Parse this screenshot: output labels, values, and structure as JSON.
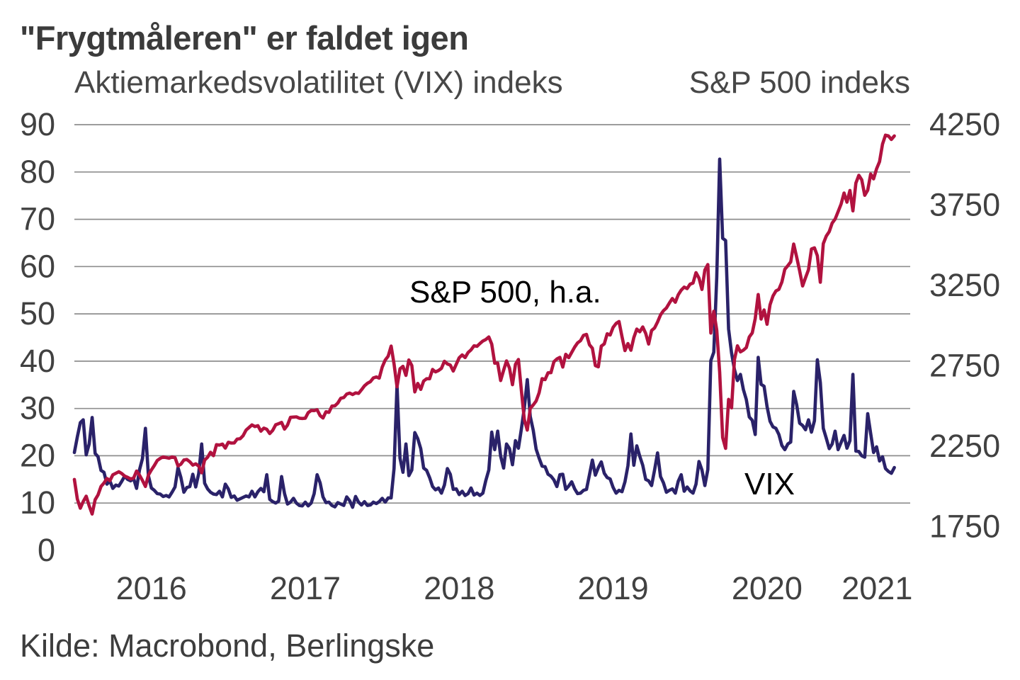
{
  "title": "\"Frygtmåleren\" er faldet igen",
  "subtitle_left": "Aktiemarkedsvolatilitet (VIX) indeks",
  "subtitle_right": "S&P 500 indeks",
  "source": "Kilde: Macrobond, Berlingske",
  "series_labels": {
    "sp500": "S&P 500, h.a.",
    "vix": "VIX"
  },
  "colors": {
    "vix": "#2a2269",
    "sp500": "#b1123f",
    "grid": "#8e8e8e",
    "tick_text": "#414141",
    "title_text": "#3b3b3b"
  },
  "chart_data": {
    "type": "line",
    "title": "\"Frygtmåleren\" er faldet igen",
    "grid": true,
    "legend": "inline-labels",
    "x_axis": {
      "unit": "year",
      "start": 2016.0,
      "step": 0.0192308,
      "range": [
        2016.0,
        2021.43
      ],
      "tick_positions": [
        2016.5,
        2017.5,
        2018.5,
        2019.5,
        2020.5,
        2021.215
      ],
      "tick_labels": [
        "2016",
        "2017",
        "2018",
        "2019",
        "2020",
        "2021"
      ]
    },
    "left_axis": {
      "title": "Aktiemarkedsvolatilitet (VIX) indeks",
      "range": [
        0,
        90
      ],
      "ticks": [
        0,
        10,
        20,
        30,
        40,
        50,
        60,
        70,
        80,
        90
      ],
      "gridlines": [
        10,
        20,
        30,
        40,
        50,
        60,
        70,
        80,
        90
      ]
    },
    "right_axis": {
      "title": "S&P 500 indeks",
      "ticks": [
        1750,
        2250,
        2750,
        3250,
        3750,
        4250
      ],
      "aligned": {
        "right_value": 4250,
        "left_value": 90,
        "right_units_per_left_unit": 29.412
      }
    },
    "series": [
      {
        "name": "VIX",
        "axis": "left",
        "color": "#2a2269",
        "values": [
          20.7,
          24.0,
          27.0,
          27.6,
          20.2,
          22.5,
          28.1,
          20.5,
          19.8,
          16.9,
          16.5,
          14.0,
          14.7,
          13.1,
          13.8,
          13.6,
          14.6,
          15.7,
          15.0,
          14.7,
          15.2,
          13.1,
          17.0,
          19.4,
          25.8,
          15.8,
          13.2,
          12.7,
          12.0,
          11.9,
          11.4,
          11.6,
          11.3,
          12.3,
          13.4,
          17.5,
          15.4,
          12.3,
          13.3,
          13.5,
          16.1,
          13.4,
          16.2,
          22.5,
          14.2,
          13.0,
          12.3,
          11.9,
          11.8,
          12.5,
          11.3,
          14.0,
          13.0,
          11.2,
          11.5,
          10.6,
          10.9,
          11.2,
          11.5,
          11.3,
          12.5,
          11.3,
          12.4,
          13.1,
          12.4,
          16.0,
          10.8,
          10.3,
          10.0,
          10.4,
          15.6,
          12.0,
          9.8,
          10.2,
          11.0,
          10.0,
          9.5,
          9.4,
          10.2,
          9.4,
          10.0,
          12.0,
          16.0,
          14.3,
          11.3,
          10.1,
          10.2,
          9.5,
          9.2,
          10.1,
          9.8,
          9.5,
          11.3,
          10.5,
          9.1,
          11.4,
          10.2,
          9.6,
          10.3,
          9.5,
          9.6,
          10.2,
          9.9,
          10.3,
          11.0,
          10.2,
          11.1,
          11.1,
          17.3,
          35.0,
          19.5,
          16.5,
          22.5,
          15.8,
          17.0,
          24.9,
          23.6,
          21.5,
          17.4,
          16.9,
          15.4,
          13.5,
          12.8,
          13.2,
          12.1,
          13.8,
          17.3,
          16.1,
          12.9,
          13.0,
          11.8,
          12.5,
          11.6,
          12.0,
          13.2,
          11.7,
          12.1,
          11.6,
          12.1,
          14.8,
          17.0,
          25.0,
          21.3,
          25.2,
          19.9,
          17.4,
          22.5,
          21.5,
          18.1,
          23.2,
          21.6,
          25.6,
          30.1,
          36.1,
          28.3,
          25.4,
          21.4,
          19.5,
          17.8,
          17.7,
          16.1,
          15.7,
          14.9,
          13.5,
          16.0,
          16.1,
          12.9,
          13.6,
          14.5,
          13.0,
          12.0,
          12.1,
          12.7,
          12.9,
          16.0,
          19.1,
          15.9,
          17.5,
          18.7,
          16.3,
          15.4,
          15.1,
          13.3,
          12.1,
          12.7,
          12.4,
          14.5,
          17.9,
          24.6,
          18.0,
          22.1,
          19.9,
          18.0,
          15.0,
          14.7,
          13.7,
          17.0,
          20.6,
          15.6,
          14.3,
          12.3,
          12.7,
          13.0,
          12.1,
          14.6,
          16.0,
          12.5,
          13.4,
          12.6,
          12.1,
          14.0,
          18.8,
          17.0,
          13.7,
          17.1,
          40.1,
          41.9,
          57.8,
          82.7,
          66.0,
          65.5,
          46.8,
          41.7,
          38.2,
          35.9,
          37.2,
          34.0,
          31.9,
          28.2,
          27.5,
          24.5,
          40.8,
          35.1,
          34.7,
          30.4,
          27.3,
          26.1,
          25.8,
          24.5,
          22.2,
          21.3,
          22.5,
          22.9,
          33.6,
          30.8,
          26.9,
          26.4,
          25.5,
          27.6,
          25.0,
          27.4,
          40.3,
          35.5,
          25.8,
          23.7,
          21.5,
          22.5,
          25.2,
          21.3,
          22.8,
          24.3,
          21.6,
          23.2,
          37.2,
          21.0,
          20.9,
          20.0,
          19.7,
          28.9,
          24.7,
          20.7,
          21.9,
          18.9,
          19.8,
          17.3,
          16.7,
          16.3,
          17.5
        ]
      },
      {
        "name": "S&P 500",
        "axis": "right",
        "color": "#b1123f",
        "values": [
          2044,
          1922,
          1865,
          1907,
          1940,
          1880,
          1829,
          1918,
          1948,
          2000,
          2022,
          2050,
          2036,
          2073,
          2082,
          2092,
          2081,
          2065,
          2057,
          2047,
          2052,
          2096,
          2071,
          2038,
          2000,
          2071,
          2103,
          2130,
          2162,
          2175,
          2184,
          2180,
          2176,
          2184,
          2180,
          2128,
          2139,
          2165,
          2168,
          2154,
          2133,
          2141,
          2127,
          2085,
          2164,
          2182,
          2213,
          2192,
          2260,
          2258,
          2264,
          2239,
          2275,
          2270,
          2271,
          2295,
          2297,
          2316,
          2351,
          2367,
          2383,
          2373,
          2378,
          2344,
          2363,
          2356,
          2329,
          2349,
          2384,
          2391,
          2399,
          2357,
          2382,
          2430,
          2432,
          2433,
          2425,
          2423,
          2425,
          2459,
          2473,
          2472,
          2477,
          2441,
          2426,
          2465,
          2461,
          2500,
          2502,
          2519,
          2549,
          2553,
          2575,
          2581,
          2572,
          2582,
          2579,
          2602,
          2626,
          2642,
          2652,
          2675,
          2681,
          2674,
          2743,
          2786,
          2810,
          2873,
          2762,
          2620,
          2732,
          2747,
          2691,
          2787,
          2752,
          2588,
          2641,
          2604,
          2656,
          2670,
          2670,
          2728,
          2713,
          2721,
          2735,
          2779,
          2762,
          2755,
          2718,
          2760,
          2801,
          2818,
          2802,
          2833,
          2850,
          2875,
          2872,
          2889,
          2905,
          2914,
          2930,
          2886,
          2767,
          2768,
          2659,
          2723,
          2781,
          2736,
          2633,
          2760,
          2790,
          2600,
          2417,
          2351,
          2486,
          2507,
          2532,
          2583,
          2671,
          2665,
          2707,
          2708,
          2776,
          2793,
          2803,
          2743,
          2822,
          2801,
          2834,
          2867,
          2893,
          2907,
          2940,
          2946,
          2881,
          2860,
          2752,
          2744,
          2873,
          2887,
          2950,
          2942,
          2990,
          3014,
          3026,
          2932,
          2845,
          2889,
          2847,
          2926,
          2979,
          2962,
          2992,
          2952,
          2886,
          2970,
          2986,
          3023,
          3067,
          3093,
          3110,
          3141,
          3169,
          3146,
          3192,
          3221,
          3240,
          3231,
          3258,
          3265,
          3330,
          3296,
          3225,
          3346,
          3380,
          2954,
          3090,
          2972,
          2711,
          2305,
          2237,
          2542,
          2489,
          2790,
          2875,
          2837,
          2848,
          2864,
          2930,
          2955,
          3044,
          3194,
          3041,
          3098,
          3009,
          3130,
          3185,
          3216,
          3226,
          3271,
          3351,
          3373,
          3397,
          3508,
          3427,
          3341,
          3247,
          3298,
          3348,
          3477,
          3484,
          3435,
          3270,
          3510,
          3557,
          3585,
          3638,
          3663,
          3709,
          3756,
          3825,
          3768,
          3841,
          3714,
          3887,
          3935,
          3907,
          3811,
          3842,
          3943,
          3913,
          3975,
          4020,
          4129,
          4185,
          4180,
          4158,
          4180
        ]
      }
    ]
  }
}
